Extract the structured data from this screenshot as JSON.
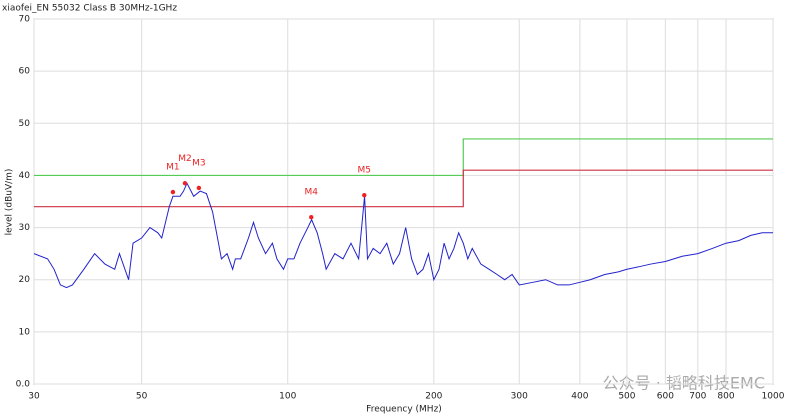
{
  "chart_data": {
    "type": "line",
    "title": "xiaofei_EN 55032 Class B 30MHz-1GHz",
    "x_label": "Frequency (MHz)",
    "y_label": "level (dBuV/m)",
    "xscale": "log",
    "xlim": [
      30,
      1000
    ],
    "ylim": [
      0,
      70
    ],
    "xticks": [
      30,
      50,
      100,
      200,
      300,
      400,
      500,
      600,
      700,
      800,
      1000
    ],
    "yticks": [
      {
        "value": 0,
        "label": "0.0"
      },
      10,
      20,
      30,
      40,
      50,
      60,
      70
    ],
    "grid": true,
    "trace": {
      "color": "#2222cc",
      "x": [
        30,
        32,
        33,
        34,
        35,
        36,
        38,
        40,
        42,
        44,
        45,
        47,
        48,
        50,
        52,
        54,
        55,
        57,
        58,
        60,
        61,
        62,
        64,
        66,
        68,
        70,
        72,
        73,
        75,
        77,
        78,
        80,
        83,
        85,
        87,
        90,
        93,
        95,
        98,
        100,
        103,
        106,
        110,
        112,
        115,
        118,
        120,
        125,
        130,
        135,
        140,
        144,
        146,
        150,
        155,
        160,
        165,
        170,
        175,
        180,
        185,
        190,
        195,
        200,
        205,
        210,
        215,
        220,
        225,
        230,
        235,
        240,
        250,
        260,
        270,
        280,
        290,
        300,
        320,
        340,
        360,
        380,
        400,
        420,
        450,
        480,
        500,
        530,
        560,
        600,
        650,
        700,
        750,
        800,
        850,
        900,
        950,
        1000
      ],
      "values": [
        25,
        24,
        22,
        19,
        18.5,
        19,
        22,
        25,
        23,
        22,
        25,
        20,
        27,
        28,
        30,
        29,
        28,
        34,
        36,
        36,
        37,
        38.5,
        36,
        37,
        36.5,
        33,
        27,
        24,
        25,
        22,
        24,
        24,
        28,
        31,
        28,
        25,
        27,
        24,
        22,
        24,
        24,
        27,
        30,
        31.5,
        29,
        25,
        22,
        25,
        24,
        27,
        24,
        36,
        24,
        26,
        25,
        27,
        23,
        25,
        30,
        24,
        21,
        22,
        25,
        20,
        22,
        27,
        24,
        26,
        29,
        27,
        24,
        26,
        23,
        22,
        21,
        20,
        21,
        19,
        19.5,
        20,
        19,
        19,
        19.5,
        20,
        21,
        21.5,
        22,
        22.5,
        23,
        23.5,
        24.5,
        25,
        26,
        27,
        27.5,
        28.5,
        29,
        29
      ]
    },
    "limits": [
      {
        "color": "#55cc55",
        "x": [
          30,
          230,
          230,
          1000
        ],
        "values": [
          40,
          40,
          47,
          47
        ]
      },
      {
        "color": "#cc3344",
        "x": [
          30,
          230,
          230,
          1000
        ],
        "values": [
          34,
          34,
          41,
          41
        ]
      }
    ],
    "marker_color": "#ee2222",
    "markers": [
      {
        "label": "M1",
        "x": 58,
        "value": 36.8
      },
      {
        "label": "M2",
        "x": 61.4,
        "value": 38.5
      },
      {
        "label": "M3",
        "x": 65.6,
        "value": 37.6
      },
      {
        "label": "M4",
        "x": 111.8,
        "value": 32
      },
      {
        "label": "M5",
        "x": 143.8,
        "value": 36.2
      }
    ],
    "watermark": "公众号 · 韬略科技EMC"
  }
}
